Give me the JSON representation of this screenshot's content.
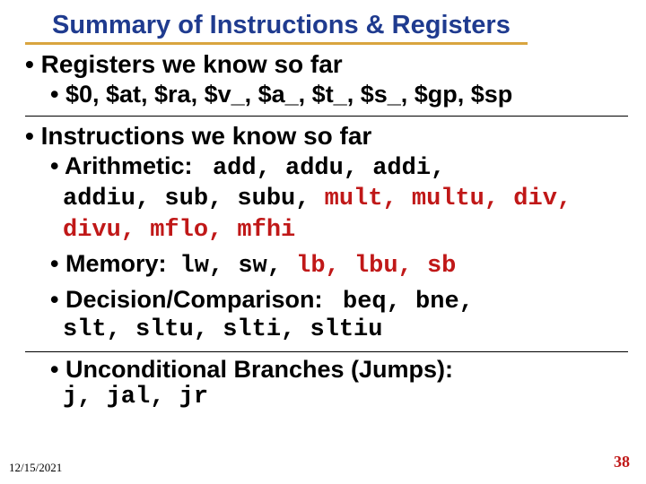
{
  "title": "Summary of Instructions & Registers",
  "colors": {
    "title": "#1f3b8f",
    "underline": "#d9a53f",
    "text": "#000000",
    "highlight": "#c01818",
    "background": "#ffffff"
  },
  "bullets": {
    "b1": "Registers we know so far",
    "b1_1": "$0, $at, $ra, $v_, $a_, $t_, $s_, $gp, $sp",
    "b2": "Instructions we know so far",
    "b2_1_label": "Arithmetic:",
    "b2_1_part1": "add, addu, addi,",
    "b2_1_part2": "addiu, sub, subu, ",
    "b2_1_part2_red": "mult, multu, div, divu, mflo, mfhi",
    "b2_2_label": "Memory:",
    "b2_2_part1": "lw, sw, ",
    "b2_2_part1_red": "lb, lbu, sb",
    "b2_3_label": "Decision/Comparison:",
    "b2_3_part1": "beq, bne,",
    "b2_3_cont": "slt, sltu, slti, sltiu",
    "b2_4_label": "Unconditional Branches (Jumps):",
    "b2_4_part1": "j, jal, jr"
  },
  "footer": {
    "date": "12/15/2021",
    "page": "38"
  }
}
